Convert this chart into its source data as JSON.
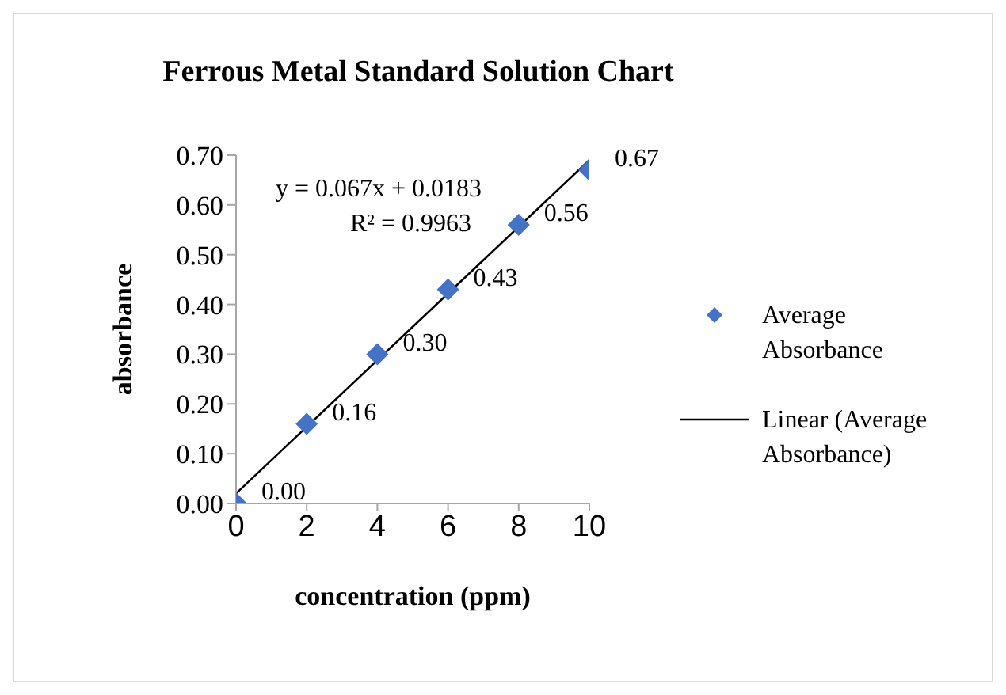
{
  "chart_data": {
    "type": "scatter",
    "title": "Ferrous Metal Standard Solution Chart",
    "xlabel": "concentration (ppm)",
    "ylabel": "absorbance",
    "x": [
      0,
      2,
      4,
      6,
      8,
      10
    ],
    "series": [
      {
        "name": "Average Absorbance",
        "color": "#4472c4",
        "values": [
          0.0,
          0.16,
          0.3,
          0.43,
          0.56,
          0.67
        ],
        "value_labels": [
          "0.00",
          "0.16",
          "0.30",
          "0.43",
          "0.56",
          "0.67"
        ],
        "marker": "diamond"
      },
      {
        "name": "Linear (Average Absorbance)",
        "type": "line",
        "color": "#000000",
        "x": [
          0,
          10
        ],
        "values": [
          0.02,
          0.69
        ],
        "marker": "none",
        "line_style": "solid"
      }
    ],
    "annotations": [
      "y = 0.067x + 0.0183",
      "R² = 0.9963"
    ],
    "xlim": [
      0,
      10
    ],
    "xticks": [
      0,
      2,
      4,
      6,
      8,
      10
    ],
    "ylim": [
      0,
      0.7
    ],
    "yticks": [
      {
        "value": 0,
        "label": "0.00"
      },
      {
        "value": 0.1,
        "label": "0.10"
      },
      {
        "value": 0.2,
        "label": "0.20"
      },
      {
        "value": 0.3,
        "label": "0.30"
      },
      {
        "value": 0.4,
        "label": "0.40"
      },
      {
        "value": 0.5,
        "label": "0.50"
      },
      {
        "value": 0.6,
        "label": "0.60"
      },
      {
        "value": 0.7,
        "label": "0.70"
      }
    ],
    "grid": false,
    "legend": "right"
  }
}
